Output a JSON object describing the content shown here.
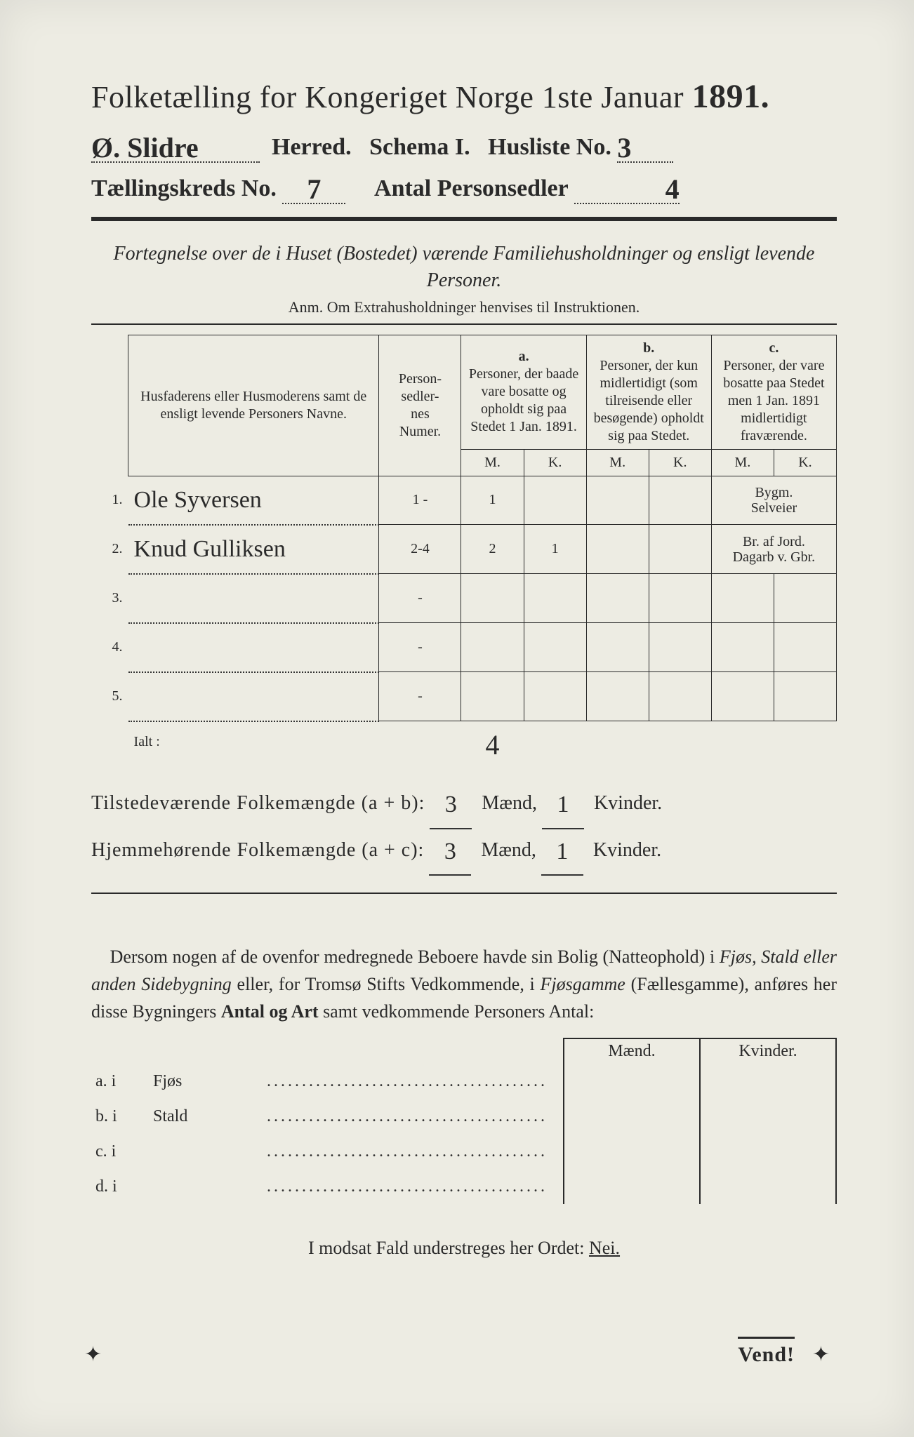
{
  "header": {
    "title_prefix": "Folketælling for Kongeriget Norge 1ste Januar",
    "year": "1891.",
    "herred_value": "Ø. Slidre",
    "herred_label": "Herred.",
    "schema_label": "Schema I.",
    "husliste_label": "Husliste No.",
    "husliste_value": "3",
    "kreds_label": "Tællingskreds No.",
    "kreds_value": "7",
    "antal_label": "Antal Personsedler",
    "antal_value": "4"
  },
  "intro": {
    "line": "Fortegnelse over de i Huset (Bostedet) værende Familiehusholdninger og ensligt levende Personer.",
    "anm": "Anm. Om Extrahusholdninger henvises til Instruktionen."
  },
  "table": {
    "col_name": "Husfaderens eller Husmoderens samt de ensligt levende Personers Navne.",
    "col_num": "Person-\nsedler-\nnes\nNumer.",
    "grp_a_label": "a.",
    "grp_a_text": "Personer, der baade vare bosatte og opholdt sig paa Stedet 1 Jan. 1891.",
    "grp_b_label": "b.",
    "grp_b_text": "Personer, der kun midlertidigt (som tilreisende eller besøgende) opholdt sig paa Stedet.",
    "grp_c_label": "c.",
    "grp_c_text": "Personer, der vare bosatte paa Stedet men 1 Jan. 1891 midlertidigt fraværende.",
    "mk_m": "M.",
    "mk_k": "K.",
    "rows": [
      {
        "n": "1.",
        "name": "Ole Syversen",
        "num": "1 -",
        "aM": "1",
        "aK": "",
        "bM": "",
        "bK": "",
        "cM": "",
        "cK": "",
        "note": "Bygm.\nSelveier"
      },
      {
        "n": "2.",
        "name": "Knud Gulliksen",
        "num": "2-4",
        "aM": "2",
        "aK": "1",
        "bM": "",
        "bK": "",
        "cM": "",
        "cK": "",
        "note": "Br. af Jord.\nDagarb v. Gbr."
      },
      {
        "n": "3.",
        "name": "",
        "num": "-",
        "aM": "",
        "aK": "",
        "bM": "",
        "bK": "",
        "cM": "",
        "cK": "",
        "note": ""
      },
      {
        "n": "4.",
        "name": "",
        "num": "-",
        "aM": "",
        "aK": "",
        "bM": "",
        "bK": "",
        "cM": "",
        "cK": "",
        "note": ""
      },
      {
        "n": "5.",
        "name": "",
        "num": "-",
        "aM": "",
        "aK": "",
        "bM": "",
        "bK": "",
        "cM": "",
        "cK": "",
        "note": ""
      }
    ],
    "ialt_label": "Ialt :",
    "ialt_value": "4"
  },
  "totals": {
    "line1_label": "Tilstedeværende Folkemængde (a + b):",
    "line1_m": "3",
    "line1_k": "1",
    "line2_label": "Hjemmehørende Folkemængde (a + c):",
    "line2_m": "3",
    "line2_k": "1",
    "maend": "Mænd,",
    "kvinder": "Kvinder."
  },
  "para": "Dersom nogen af de ovenfor medregnede Beboere havde sin Bolig (Natteophold) i Fjøs, Stald eller anden Sidebygning eller, for Tromsø Stifts Vedkommende, i Fjøsgamme (Fællesgamme), anføres her disse Bygningers Antal og Art samt vedkommende Personers Antal:",
  "bldg": {
    "hdr_m": "Mænd.",
    "hdr_k": "Kvinder.",
    "rows": [
      {
        "lbl": "a.  i",
        "type": "Fjøs"
      },
      {
        "lbl": "b.  i",
        "type": "Stald"
      },
      {
        "lbl": "c.  i",
        "type": ""
      },
      {
        "lbl": "d.  i",
        "type": ""
      }
    ]
  },
  "modsat": {
    "text": "I modsat Fald understreges her Ordet:",
    "nei": "Nei."
  },
  "vend": "Vend!"
}
